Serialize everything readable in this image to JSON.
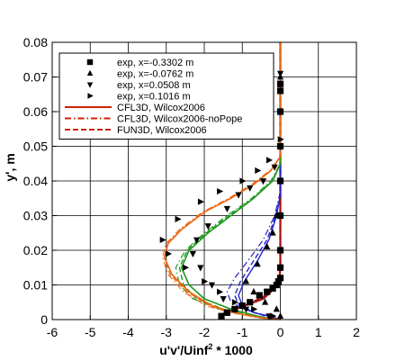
{
  "chart_data": {
    "type": "line",
    "xlabel": "u'v'/Uinf",
    "xlabel_sup": "2",
    "xlabel_suffix": " * 1000",
    "ylabel": "y', m",
    "xlim": [
      -6,
      2
    ],
    "ylim": [
      0,
      0.08
    ],
    "xticks": [
      "-6",
      "-5",
      "-4",
      "-3",
      "-2",
      "-1",
      "0",
      "1",
      "2"
    ],
    "yticks": [
      "0",
      "0.01",
      "0.02",
      "0.03",
      "0.04",
      "0.05",
      "0.06",
      "0.07",
      "0.08"
    ],
    "grid": true,
    "legend_position": "top-left",
    "legend": [
      {
        "label": "exp, x=-0.3302 m",
        "marker": "square",
        "color": "#000000"
      },
      {
        "label": "exp, x=-0.0762 m",
        "marker": "triangle-up",
        "color": "#000000"
      },
      {
        "label": "exp, x=0.0508 m",
        "marker": "triangle-down",
        "color": "#000000"
      },
      {
        "label": "exp, x=0.1016 m",
        "marker": "triangle-right",
        "color": "#000000"
      },
      {
        "label": "CFL3D, Wilcox2006",
        "line": "solid",
        "color": "#cc2200"
      },
      {
        "label": "CFL3D, Wilcox2006-noPope",
        "line": "dashdot",
        "color": "#cc2200"
      },
      {
        "label": "FUN3D, Wilcox2006",
        "line": "dashed",
        "color": "#cc2200"
      }
    ],
    "experiments": [
      {
        "label": "exp, x=-0.3302 m",
        "marker": "square",
        "points": [
          [
            -1.55,
            0.001
          ],
          [
            -1.4,
            0.002
          ],
          [
            -1.2,
            0.003
          ],
          [
            -1.0,
            0.004
          ],
          [
            -0.8,
            0.005
          ],
          [
            -0.55,
            0.007
          ],
          [
            -0.35,
            0.008
          ],
          [
            -0.2,
            0.009
          ],
          [
            -0.1,
            0.01
          ],
          [
            -0.05,
            0.011
          ],
          [
            0.0,
            0.012
          ],
          [
            0.0,
            0.015
          ],
          [
            0.0,
            0.02
          ],
          [
            0.0,
            0.03
          ],
          [
            0.0,
            0.04
          ],
          [
            0.0,
            0.05
          ],
          [
            0.0,
            0.06
          ],
          [
            0.0,
            0.066
          ],
          [
            0.0,
            0.068
          ]
        ]
      },
      {
        "label": "exp, x=-0.0762 m",
        "marker": "triangle-up",
        "points": [
          [
            0.0,
            0.001
          ],
          [
            -0.1,
            0.003
          ],
          [
            -0.4,
            0.005
          ],
          [
            -0.7,
            0.008
          ],
          [
            -0.9,
            0.011
          ],
          [
            -0.6,
            0.016
          ],
          [
            -0.35,
            0.021
          ],
          [
            -0.2,
            0.025
          ],
          [
            -0.1,
            0.03
          ],
          [
            0.0,
            0.04
          ],
          [
            0.0,
            0.05
          ],
          [
            0.0,
            0.06
          ],
          [
            0.0,
            0.066
          ],
          [
            0.0,
            0.07
          ]
        ]
      },
      {
        "label": "exp, x=0.0508 m",
        "marker": "triangle-down",
        "points": [
          [
            -0.3,
            0.001
          ],
          [
            -0.9,
            0.003
          ],
          [
            -1.5,
            0.006
          ],
          [
            -1.8,
            0.01
          ],
          [
            -2.1,
            0.015
          ],
          [
            -2.3,
            0.019
          ],
          [
            -2.2,
            0.023
          ],
          [
            -1.9,
            0.027
          ],
          [
            -1.4,
            0.032
          ],
          [
            -1.1,
            0.036
          ],
          [
            -0.8,
            0.038
          ],
          [
            -0.45,
            0.04
          ],
          [
            -0.15,
            0.044
          ],
          [
            0.0,
            0.05
          ],
          [
            0.0,
            0.06
          ],
          [
            0.0,
            0.071
          ]
        ]
      },
      {
        "label": "exp, x=0.1016 m",
        "marker": "triangle-right",
        "points": [
          [
            -0.2,
            0.001
          ],
          [
            -0.7,
            0.003
          ],
          [
            -1.2,
            0.005
          ],
          [
            -1.6,
            0.008
          ],
          [
            -2.0,
            0.011
          ],
          [
            -2.5,
            0.015
          ],
          [
            -2.95,
            0.019
          ],
          [
            -3.1,
            0.023
          ],
          [
            -2.7,
            0.029
          ],
          [
            -2.1,
            0.034
          ],
          [
            -1.6,
            0.037
          ],
          [
            -1.0,
            0.04
          ],
          [
            -0.6,
            0.043
          ],
          [
            -0.3,
            0.046
          ],
          [
            0.0,
            0.052
          ],
          [
            0.0,
            0.06
          ],
          [
            0.0,
            0.068
          ]
        ]
      }
    ],
    "series": [
      {
        "color": "#aa1111",
        "style": "solid",
        "width": 2.2,
        "points": [
          [
            -1.6,
            0.0
          ],
          [
            -1.6,
            0.001
          ],
          [
            -1.45,
            0.002
          ],
          [
            -1.2,
            0.003
          ],
          [
            -0.95,
            0.004
          ],
          [
            -0.7,
            0.005
          ],
          [
            -0.45,
            0.006
          ],
          [
            -0.25,
            0.008
          ],
          [
            -0.1,
            0.01
          ],
          [
            -0.02,
            0.012
          ],
          [
            0.0,
            0.015
          ],
          [
            0.0,
            0.04
          ],
          [
            0.0,
            0.08
          ]
        ]
      },
      {
        "color": "#aa1111",
        "style": "dashed",
        "width": 2.2,
        "points": [
          [
            -1.55,
            0.0
          ],
          [
            -1.5,
            0.002
          ],
          [
            -1.3,
            0.003
          ],
          [
            -1.0,
            0.004
          ],
          [
            -0.75,
            0.005
          ],
          [
            -0.45,
            0.0065
          ],
          [
            -0.22,
            0.0085
          ],
          [
            -0.08,
            0.011
          ],
          [
            -0.02,
            0.013
          ],
          [
            0.0,
            0.016
          ],
          [
            0.0,
            0.04
          ],
          [
            0.0,
            0.08
          ]
        ]
      },
      {
        "color": "#2222cc",
        "style": "solid",
        "width": 1.4,
        "points": [
          [
            0.0,
            0.0
          ],
          [
            -0.3,
            0.001
          ],
          [
            -0.7,
            0.002
          ],
          [
            -1.0,
            0.004
          ],
          [
            -1.1,
            0.007
          ],
          [
            -0.95,
            0.011
          ],
          [
            -0.6,
            0.017
          ],
          [
            -0.3,
            0.023
          ],
          [
            -0.1,
            0.03
          ],
          [
            0.0,
            0.036
          ],
          [
            0.0,
            0.045
          ],
          [
            0.0,
            0.08
          ]
        ]
      },
      {
        "color": "#2222cc",
        "style": "dashdot",
        "width": 1.2,
        "points": [
          [
            -0.05,
            0.0
          ],
          [
            -0.5,
            0.0015
          ],
          [
            -0.95,
            0.003
          ],
          [
            -1.3,
            0.005
          ],
          [
            -1.4,
            0.008
          ],
          [
            -1.2,
            0.012
          ],
          [
            -0.85,
            0.017
          ],
          [
            -0.45,
            0.023
          ],
          [
            -0.15,
            0.03
          ],
          [
            0.0,
            0.037
          ],
          [
            0.0,
            0.08
          ]
        ]
      },
      {
        "color": "#2222cc",
        "style": "dashed",
        "width": 1.4,
        "points": [
          [
            0.0,
            0.0
          ],
          [
            -0.4,
            0.001
          ],
          [
            -0.8,
            0.0025
          ],
          [
            -1.1,
            0.0045
          ],
          [
            -1.2,
            0.007
          ],
          [
            -1.05,
            0.011
          ],
          [
            -0.7,
            0.017
          ],
          [
            -0.35,
            0.023
          ],
          [
            -0.12,
            0.03
          ],
          [
            0.0,
            0.036
          ],
          [
            0.0,
            0.08
          ]
        ]
      },
      {
        "color": "#229922",
        "style": "solid",
        "width": 1.6,
        "points": [
          [
            -0.1,
            0.0
          ],
          [
            -0.6,
            0.001
          ],
          [
            -1.3,
            0.003
          ],
          [
            -2.0,
            0.006
          ],
          [
            -2.4,
            0.01
          ],
          [
            -2.6,
            0.015
          ],
          [
            -2.4,
            0.02
          ],
          [
            -1.9,
            0.025
          ],
          [
            -1.3,
            0.03
          ],
          [
            -0.7,
            0.035
          ],
          [
            -0.2,
            0.04
          ],
          [
            0.0,
            0.045
          ],
          [
            0.0,
            0.08
          ]
        ]
      },
      {
        "color": "#229922",
        "style": "dashdot",
        "width": 1.2,
        "points": [
          [
            -0.2,
            0.0
          ],
          [
            -0.8,
            0.001
          ],
          [
            -1.6,
            0.003
          ],
          [
            -2.3,
            0.006
          ],
          [
            -2.65,
            0.01
          ],
          [
            -2.75,
            0.015
          ],
          [
            -2.5,
            0.02
          ],
          [
            -2.0,
            0.025
          ],
          [
            -1.4,
            0.03
          ],
          [
            -0.75,
            0.035
          ],
          [
            -0.25,
            0.04
          ],
          [
            0.0,
            0.045
          ],
          [
            0.0,
            0.08
          ]
        ]
      },
      {
        "color": "#229922",
        "style": "dashed",
        "width": 1.4,
        "points": [
          [
            -0.15,
            0.0
          ],
          [
            -0.7,
            0.001
          ],
          [
            -1.5,
            0.003
          ],
          [
            -2.2,
            0.006
          ],
          [
            -2.55,
            0.01
          ],
          [
            -2.65,
            0.015
          ],
          [
            -2.45,
            0.02
          ],
          [
            -1.95,
            0.025
          ],
          [
            -1.35,
            0.03
          ],
          [
            -0.72,
            0.035
          ],
          [
            -0.22,
            0.04
          ],
          [
            0.0,
            0.045
          ],
          [
            0.0,
            0.08
          ]
        ]
      },
      {
        "color": "#ee6611",
        "style": "solid",
        "width": 1.6,
        "points": [
          [
            0.0,
            0.0
          ],
          [
            -0.5,
            0.0005
          ],
          [
            -1.2,
            0.002
          ],
          [
            -1.8,
            0.004
          ],
          [
            -2.4,
            0.008
          ],
          [
            -2.85,
            0.013
          ],
          [
            -3.05,
            0.018
          ],
          [
            -2.95,
            0.022
          ],
          [
            -2.6,
            0.026
          ],
          [
            -2.0,
            0.031
          ],
          [
            -1.3,
            0.035
          ],
          [
            -0.7,
            0.039
          ],
          [
            -0.25,
            0.043
          ],
          [
            0.0,
            0.047
          ],
          [
            0.0,
            0.08
          ]
        ]
      },
      {
        "color": "#ee6611",
        "style": "dashdot",
        "width": 1.2,
        "points": [
          [
            -0.05,
            0.0
          ],
          [
            -0.55,
            0.0005
          ],
          [
            -1.3,
            0.002
          ],
          [
            -1.95,
            0.004
          ],
          [
            -2.55,
            0.008
          ],
          [
            -2.95,
            0.013
          ],
          [
            -3.1,
            0.018
          ],
          [
            -3.0,
            0.022
          ],
          [
            -2.65,
            0.026
          ],
          [
            -2.05,
            0.031
          ],
          [
            -1.35,
            0.035
          ],
          [
            -0.75,
            0.039
          ],
          [
            -0.28,
            0.043
          ],
          [
            0.0,
            0.047
          ],
          [
            0.0,
            0.08
          ]
        ]
      },
      {
        "color": "#ee6611",
        "style": "dashed",
        "width": 1.4,
        "points": [
          [
            0.0,
            0.0
          ],
          [
            -0.5,
            0.0005
          ],
          [
            -1.25,
            0.002
          ],
          [
            -1.85,
            0.004
          ],
          [
            -2.45,
            0.008
          ],
          [
            -2.9,
            0.013
          ],
          [
            -3.05,
            0.018
          ],
          [
            -2.95,
            0.022
          ],
          [
            -2.6,
            0.026
          ],
          [
            -2.0,
            0.031
          ],
          [
            -1.3,
            0.035
          ],
          [
            -0.7,
            0.039
          ],
          [
            -0.25,
            0.043
          ],
          [
            0.0,
            0.047
          ],
          [
            0.0,
            0.08
          ]
        ]
      }
    ]
  }
}
